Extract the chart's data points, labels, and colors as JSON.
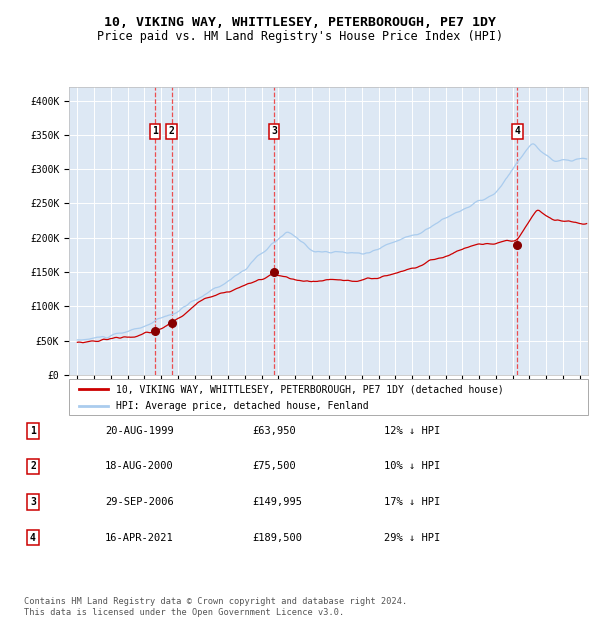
{
  "title": "10, VIKING WAY, WHITTLESEY, PETERBOROUGH, PE7 1DY",
  "subtitle": "Price paid vs. HM Land Registry's House Price Index (HPI)",
  "xlim": [
    1994.5,
    2025.5
  ],
  "ylim": [
    0,
    420000
  ],
  "yticks": [
    0,
    50000,
    100000,
    150000,
    200000,
    250000,
    300000,
    350000,
    400000
  ],
  "ytick_labels": [
    "£0",
    "£50K",
    "£100K",
    "£150K",
    "£200K",
    "£250K",
    "£300K",
    "£350K",
    "£400K"
  ],
  "sale_dates_decimal": [
    1999.635,
    2000.635,
    2006.747,
    2021.289
  ],
  "sale_prices": [
    63950,
    75500,
    149995,
    189500
  ],
  "sale_labels": [
    "1",
    "2",
    "3",
    "4"
  ],
  "hpi_color": "#aaccee",
  "price_color": "#cc0000",
  "marker_color": "#880000",
  "vline_color": "#ee3333",
  "background_color": "#dde8f4",
  "grid_color": "#ffffff",
  "legend_label_price": "10, VIKING WAY, WHITTLESEY, PETERBOROUGH, PE7 1DY (detached house)",
  "legend_label_hpi": "HPI: Average price, detached house, Fenland",
  "table_rows": [
    [
      "1",
      "20-AUG-1999",
      "£63,950",
      "12% ↓ HPI"
    ],
    [
      "2",
      "18-AUG-2000",
      "£75,500",
      "10% ↓ HPI"
    ],
    [
      "3",
      "29-SEP-2006",
      "£149,995",
      "17% ↓ HPI"
    ],
    [
      "4",
      "16-APR-2021",
      "£189,500",
      "29% ↓ HPI"
    ]
  ],
  "footnote": "Contains HM Land Registry data © Crown copyright and database right 2024.\nThis data is licensed under the Open Government Licence v3.0.",
  "title_fontsize": 9.5,
  "subtitle_fontsize": 8.5,
  "xtick_years": [
    1995,
    1996,
    1997,
    1998,
    1999,
    2000,
    2001,
    2002,
    2003,
    2004,
    2005,
    2006,
    2007,
    2008,
    2009,
    2010,
    2011,
    2012,
    2013,
    2014,
    2015,
    2016,
    2017,
    2018,
    2019,
    2020,
    2021,
    2022,
    2023,
    2024,
    2025
  ]
}
